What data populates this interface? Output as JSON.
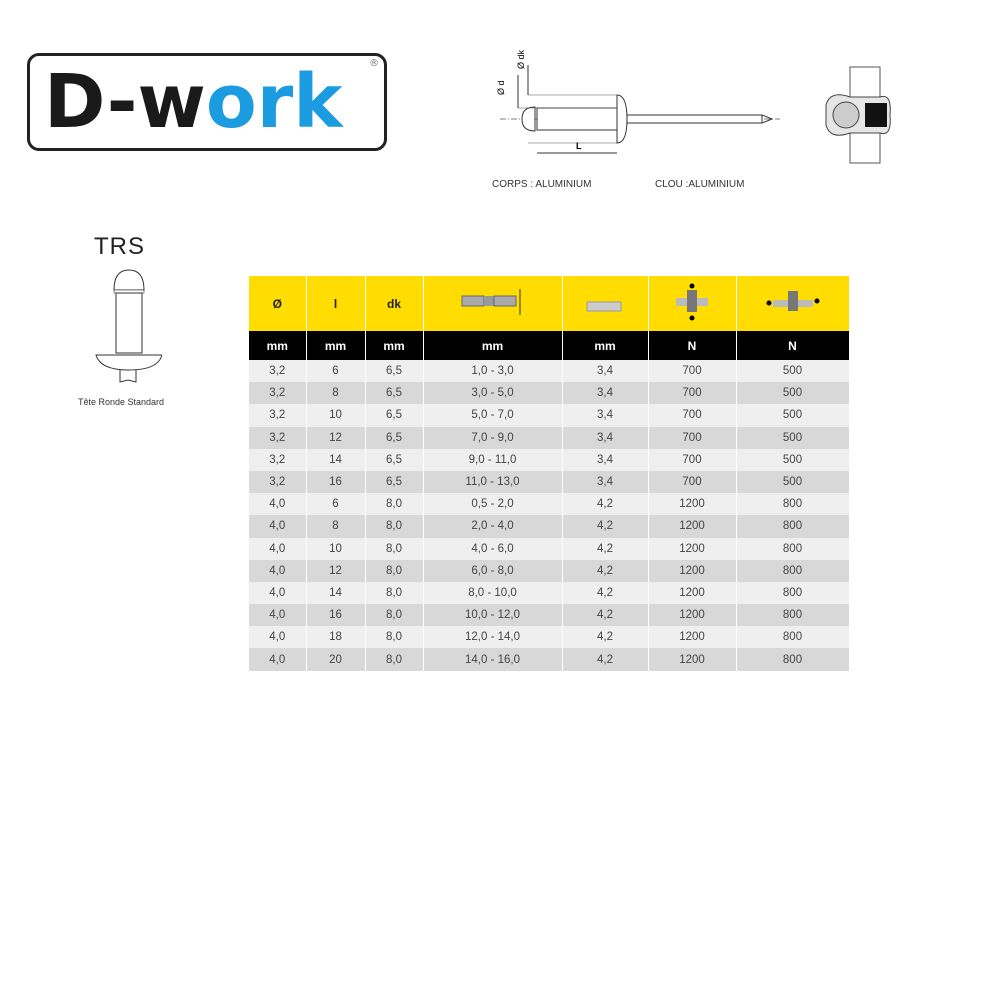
{
  "logo": {
    "text_dark": "D-w",
    "text_blue": "ork",
    "registered": "®",
    "brand_blue": "#1b9be0"
  },
  "diagram": {
    "label_d": "Ø d",
    "label_dk": "Ø dk",
    "label_L": "L",
    "corps": "CORPS : ALUMINIUM",
    "clou": "CLOU :ALUMINIUM"
  },
  "rivet_type": {
    "code": "TRS",
    "caption": "Tête Ronde Standard"
  },
  "table": {
    "header_color": "#ffdd00",
    "headers": [
      "Ø",
      "l",
      "dk",
      "grip-range-icon",
      "drill-bit-icon",
      "shear-force-icon",
      "tensile-force-icon"
    ],
    "header_text": {
      "0": "Ø",
      "1": "l",
      "2": "dk"
    },
    "units": [
      "mm",
      "mm",
      "mm",
      "mm",
      "mm",
      "N",
      "N"
    ],
    "rows": [
      [
        "3,2",
        "6",
        "6,5",
        "1,0 - 3,0",
        "3,4",
        "700",
        "500"
      ],
      [
        "3,2",
        "8",
        "6,5",
        "3,0 - 5,0",
        "3,4",
        "700",
        "500"
      ],
      [
        "3,2",
        "10",
        "6,5",
        "5,0 - 7,0",
        "3,4",
        "700",
        "500"
      ],
      [
        "3,2",
        "12",
        "6,5",
        "7,0 - 9,0",
        "3,4",
        "700",
        "500"
      ],
      [
        "3,2",
        "14",
        "6,5",
        "9,0 - 11,0",
        "3,4",
        "700",
        "500"
      ],
      [
        "3,2",
        "16",
        "6,5",
        "11,0 - 13,0",
        "3,4",
        "700",
        "500"
      ],
      [
        "4,0",
        "6",
        "8,0",
        "0,5 - 2,0",
        "4,2",
        "1200",
        "800"
      ],
      [
        "4,0",
        "8",
        "8,0",
        "2,0 - 4,0",
        "4,2",
        "1200",
        "800"
      ],
      [
        "4,0",
        "10",
        "8,0",
        "4,0 - 6,0",
        "4,2",
        "1200",
        "800"
      ],
      [
        "4,0",
        "12",
        "8,0",
        "6,0 - 8,0",
        "4,2",
        "1200",
        "800"
      ],
      [
        "4,0",
        "14",
        "8,0",
        "8,0 - 10,0",
        "4,2",
        "1200",
        "800"
      ],
      [
        "4,0",
        "16",
        "8,0",
        "10,0 - 12,0",
        "4,2",
        "1200",
        "800"
      ],
      [
        "4,0",
        "18",
        "8,0",
        "12,0 - 14,0",
        "4,2",
        "1200",
        "800"
      ],
      [
        "4,0",
        "20",
        "8,0",
        "14,0 - 16,0",
        "4,2",
        "1200",
        "800"
      ]
    ]
  }
}
